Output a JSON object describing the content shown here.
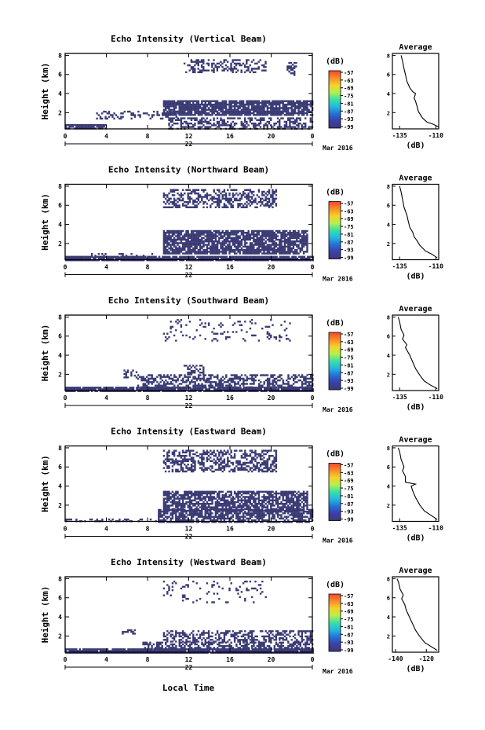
{
  "figure": {
    "xlabel": "Local Time",
    "date_label": "Mar 2016",
    "colorbar_unit": "(dB)",
    "colorbar_ticks": [
      "-57",
      "-63",
      "-69",
      "-75",
      "-81",
      "-87",
      "-93",
      "-99"
    ],
    "colorbar_colors": [
      "#f7462e",
      "#fa8c28",
      "#f5d22a",
      "#b6f04a",
      "#38e0a6",
      "#24b8e0",
      "#2470d6",
      "#3c3fa8",
      "#3a3a78"
    ],
    "echo_color": "#3a3b74"
  },
  "chart_data": [
    {
      "type": "heatmap",
      "title": "Echo Intensity (Vertical Beam)",
      "ylabel": "Height (km)",
      "x_ticks": [
        "0",
        "4",
        "8",
        "12",
        "16",
        "20",
        "0"
      ],
      "x_day_label": "22",
      "xlim": [
        0,
        24
      ],
      "y_ticks": [
        "8",
        "6",
        "4",
        "2"
      ],
      "ylim": [
        0.3,
        8.2
      ],
      "echo_regions": [
        {
          "t": [
            11.5,
            19.5
          ],
          "h": [
            6.3,
            7.6
          ],
          "density": 0.35
        },
        {
          "t": [
            21.5,
            22.5
          ],
          "h": [
            6.0,
            7.3
          ],
          "density": 0.4
        },
        {
          "t": [
            9.5,
            24.0
          ],
          "h": [
            1.8,
            3.3
          ],
          "density": 0.85
        },
        {
          "t": [
            0.0,
            4.0
          ],
          "h": [
            0.3,
            0.8
          ],
          "density": 0.9
        },
        {
          "t": [
            3.0,
            11.0
          ],
          "h": [
            1.4,
            2.2
          ],
          "density": 0.3
        },
        {
          "t": [
            10.0,
            24.0
          ],
          "h": [
            0.3,
            1.5
          ],
          "density": 0.5
        }
      ],
      "profile": {
        "title": "Average",
        "xlabel": "(dB)",
        "x_ticks": [
          "-135",
          "-110"
        ],
        "xlim": [
          -140,
          -108
        ],
        "y_ticks": [
          "8",
          "6",
          "4",
          "2"
        ],
        "ylim": [
          0.3,
          8.2
        ],
        "points": [
          [
            -108,
            0.5
          ],
          [
            -112,
            0.8
          ],
          [
            -116,
            1.0
          ],
          [
            -119,
            1.4
          ],
          [
            -122,
            2.1
          ],
          [
            -123,
            2.7
          ],
          [
            -124,
            3.2
          ],
          [
            -125,
            3.5
          ],
          [
            -124,
            4.0
          ],
          [
            -126,
            4.2
          ],
          [
            -128,
            4.6
          ],
          [
            -130,
            5.3
          ],
          [
            -131,
            6.0
          ],
          [
            -132,
            6.6
          ],
          [
            -133,
            7.4
          ],
          [
            -134,
            8.0
          ]
        ]
      }
    },
    {
      "type": "heatmap",
      "title": "Echo Intensity (Northward Beam)",
      "ylabel": "Height (km)",
      "x_ticks": [
        "0",
        "4",
        "8",
        "12",
        "16",
        "20",
        "0"
      ],
      "x_day_label": "22",
      "xlim": [
        0,
        24
      ],
      "y_ticks": [
        "8",
        "6",
        "4",
        "2"
      ],
      "ylim": [
        0.3,
        8.2
      ],
      "echo_regions": [
        {
          "t": [
            9.5,
            20.5
          ],
          "h": [
            5.8,
            7.7
          ],
          "density": 0.5
        },
        {
          "t": [
            9.5,
            23.5
          ],
          "h": [
            1.0,
            3.4
          ],
          "density": 0.8
        },
        {
          "t": [
            0.0,
            24.0
          ],
          "h": [
            0.3,
            0.7
          ],
          "density": 0.9
        },
        {
          "t": [
            2.0,
            9.5
          ],
          "h": [
            0.6,
            1.0
          ],
          "density": 0.2
        }
      ],
      "profile": {
        "title": "Average",
        "xlabel": "(dB)",
        "x_ticks": [
          "-135",
          "-110"
        ],
        "xlim": [
          -140,
          -108
        ],
        "y_ticks": [
          "8",
          "6",
          "4",
          "2"
        ],
        "ylim": [
          0.3,
          8.2
        ],
        "points": [
          [
            -109,
            0.5
          ],
          [
            -113,
            0.9
          ],
          [
            -117,
            1.2
          ],
          [
            -121,
            1.8
          ],
          [
            -123,
            2.3
          ],
          [
            -125,
            2.7
          ],
          [
            -126,
            3.2
          ],
          [
            -128,
            3.7
          ],
          [
            -129,
            4.3
          ],
          [
            -130,
            5.0
          ],
          [
            -132,
            5.8
          ],
          [
            -133,
            6.6
          ],
          [
            -134,
            7.4
          ],
          [
            -135,
            8.0
          ]
        ]
      }
    },
    {
      "type": "heatmap",
      "title": "Echo Intensity (Southward Beam)",
      "ylabel": "Height (km)",
      "x_ticks": [
        "0",
        "4",
        "8",
        "12",
        "16",
        "20",
        "0"
      ],
      "x_day_label": "22",
      "xlim": [
        0,
        24
      ],
      "y_ticks": [
        "8",
        "6",
        "4",
        "2"
      ],
      "ylim": [
        0.3,
        8.2
      ],
      "echo_regions": [
        {
          "t": [
            9.5,
            22.0
          ],
          "h": [
            5.5,
            7.8
          ],
          "density": 0.12
        },
        {
          "t": [
            11.5,
            13.5
          ],
          "h": [
            2.0,
            3.0
          ],
          "density": 0.5
        },
        {
          "t": [
            5.5,
            7.0
          ],
          "h": [
            1.7,
            2.5
          ],
          "density": 0.35
        },
        {
          "t": [
            7.0,
            24.0
          ],
          "h": [
            0.6,
            2.0
          ],
          "density": 0.5
        },
        {
          "t": [
            0.0,
            24.0
          ],
          "h": [
            0.3,
            0.7
          ],
          "density": 0.9
        }
      ],
      "profile": {
        "title": "Average",
        "xlabel": "(dB)",
        "x_ticks": [
          "-135",
          "-110"
        ],
        "xlim": [
          -140,
          -108
        ],
        "y_ticks": [
          "8",
          "6",
          "4",
          "2"
        ],
        "ylim": [
          0.3,
          8.2
        ],
        "points": [
          [
            -109,
            0.5
          ],
          [
            -114,
            0.9
          ],
          [
            -118,
            1.3
          ],
          [
            -121,
            1.9
          ],
          [
            -124,
            2.6
          ],
          [
            -126,
            3.3
          ],
          [
            -128,
            4.0
          ],
          [
            -131,
            4.8
          ],
          [
            -130,
            5.1
          ],
          [
            -133,
            5.7
          ],
          [
            -132,
            6.1
          ],
          [
            -134,
            6.7
          ],
          [
            -135,
            7.5
          ],
          [
            -136,
            8.0
          ]
        ]
      }
    },
    {
      "type": "heatmap",
      "title": "Echo Intensity (Eastward Beam)",
      "ylabel": "Height (km)",
      "x_ticks": [
        "0",
        "4",
        "8",
        "12",
        "16",
        "20",
        "0"
      ],
      "x_day_label": "22",
      "xlim": [
        0,
        24
      ],
      "y_ticks": [
        "8",
        "6",
        "4",
        "2"
      ],
      "ylim": [
        0.3,
        8.2
      ],
      "echo_regions": [
        {
          "t": [
            9.5,
            20.5
          ],
          "h": [
            5.5,
            7.8
          ],
          "density": 0.5
        },
        {
          "t": [
            9.5,
            23.5
          ],
          "h": [
            1.5,
            3.5
          ],
          "density": 0.75
        },
        {
          "t": [
            9.0,
            24.0
          ],
          "h": [
            0.3,
            1.6
          ],
          "density": 0.7
        },
        {
          "t": [
            0.0,
            9.0
          ],
          "h": [
            0.3,
            0.6
          ],
          "density": 0.3
        }
      ],
      "profile": {
        "title": "Average",
        "xlabel": "(dB)",
        "x_ticks": [
          "-135",
          "-110"
        ],
        "xlim": [
          -140,
          -108
        ],
        "y_ticks": [
          "8",
          "6",
          "4",
          "2"
        ],
        "ylim": [
          0.3,
          8.2
        ],
        "points": [
          [
            -109,
            0.5
          ],
          [
            -113,
            0.9
          ],
          [
            -118,
            1.4
          ],
          [
            -121,
            2.0
          ],
          [
            -124,
            2.8
          ],
          [
            -126,
            3.5
          ],
          [
            -127,
            4.0
          ],
          [
            -124,
            4.2
          ],
          [
            -131,
            4.4
          ],
          [
            -131,
            5.0
          ],
          [
            -133,
            5.6
          ],
          [
            -132,
            6.0
          ],
          [
            -134,
            6.8
          ],
          [
            -135,
            7.6
          ],
          [
            -136,
            8.0
          ]
        ]
      }
    },
    {
      "type": "heatmap",
      "title": "Echo Intensity (Westward Beam)",
      "ylabel": "Height (km)",
      "x_ticks": [
        "0",
        "4",
        "8",
        "12",
        "16",
        "20",
        "0"
      ],
      "x_day_label": "22",
      "xlim": [
        0,
        24
      ],
      "y_ticks": [
        "8",
        "6",
        "4",
        "2"
      ],
      "ylim": [
        0.3,
        8.2
      ],
      "echo_regions": [
        {
          "t": [
            9.5,
            19.5
          ],
          "h": [
            5.5,
            7.8
          ],
          "density": 0.12
        },
        {
          "t": [
            5.5,
            7.0
          ],
          "h": [
            2.2,
            2.7
          ],
          "density": 0.45
        },
        {
          "t": [
            9.5,
            24.0
          ],
          "h": [
            1.4,
            2.6
          ],
          "density": 0.45
        },
        {
          "t": [
            7.5,
            24.0
          ],
          "h": [
            0.6,
            1.4
          ],
          "density": 0.55
        },
        {
          "t": [
            0.0,
            24.0
          ],
          "h": [
            0.3,
            0.7
          ],
          "density": 0.95
        }
      ],
      "profile": {
        "title": "Average",
        "xlabel": "(dB)",
        "x_ticks": [
          "-140",
          "-120"
        ],
        "xlim": [
          -142,
          -112
        ],
        "y_ticks": [
          "8",
          "6",
          "4",
          "2"
        ],
        "ylim": [
          0.3,
          8.2
        ],
        "points": [
          [
            -113,
            0.5
          ],
          [
            -117,
            0.9
          ],
          [
            -121,
            1.3
          ],
          [
            -124,
            1.9
          ],
          [
            -127,
            2.6
          ],
          [
            -129,
            3.3
          ],
          [
            -131,
            4.0
          ],
          [
            -133,
            4.7
          ],
          [
            -134,
            5.3
          ],
          [
            -136,
            5.9
          ],
          [
            -135,
            6.3
          ],
          [
            -137,
            6.9
          ],
          [
            -138,
            7.6
          ],
          [
            -139,
            8.0
          ]
        ]
      }
    }
  ]
}
